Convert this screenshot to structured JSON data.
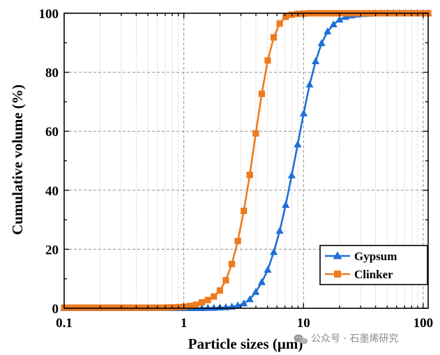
{
  "chart_data": {
    "type": "line",
    "title": "",
    "xlabel": "Particle sizes (μm)",
    "ylabel": "Cumulative volume (%)",
    "xscale": "log",
    "xlim": [
      0.1,
      110
    ],
    "ylim": [
      0,
      100
    ],
    "x_ticks": [
      0.1,
      1,
      10,
      100
    ],
    "x_tick_labels": [
      "0.1",
      "1",
      "10",
      "100"
    ],
    "y_ticks": [
      0,
      20,
      40,
      60,
      80,
      100
    ],
    "y_tick_labels": [
      "0",
      "20",
      "40",
      "60",
      "80",
      "100"
    ],
    "grid": true,
    "legend_position": "bottom-right",
    "series": [
      {
        "name": "Gypsum",
        "color": "#1f6fd6",
        "marker": "triangle",
        "x": [
          0.1,
          0.112,
          0.126,
          0.142,
          0.159,
          0.178,
          0.2,
          0.224,
          0.252,
          0.283,
          0.317,
          0.356,
          0.399,
          0.448,
          0.502,
          0.564,
          0.632,
          0.71,
          0.796,
          0.893,
          1.002,
          1.125,
          1.262,
          1.416,
          1.589,
          1.783,
          2.0,
          2.244,
          2.518,
          2.825,
          3.17,
          3.557,
          3.991,
          4.477,
          5.024,
          5.637,
          6.325,
          7.096,
          7.962,
          8.934,
          10.024,
          11.247,
          12.619,
          14.159,
          15.887,
          17.825,
          20.0,
          22.44,
          25.179,
          28.251,
          31.698,
          35.566,
          39.905,
          44.774,
          50.238,
          56.368,
          63.246,
          70.963,
          79.621,
          89.337,
          100.237,
          110.0
        ],
        "y": [
          0,
          0,
          0,
          0,
          0,
          0,
          0,
          0,
          0,
          0,
          0,
          0,
          0,
          0,
          0,
          0,
          0,
          0,
          0,
          0,
          0,
          0,
          0,
          0,
          0.05,
          0.1,
          0.2,
          0.3,
          0.5,
          0.9,
          1.6,
          3.0,
          5.5,
          8.8,
          13.0,
          19.0,
          26.2,
          35.0,
          45.0,
          55.5,
          66.0,
          75.8,
          83.7,
          89.8,
          93.8,
          96.2,
          97.8,
          98.7,
          99.2,
          99.5,
          99.7,
          99.8,
          99.9,
          99.95,
          100,
          100,
          100,
          100,
          100,
          100,
          100,
          100
        ]
      },
      {
        "name": "Clinker",
        "color": "#ee7a1e",
        "marker": "square",
        "x": [
          0.1,
          0.112,
          0.126,
          0.142,
          0.159,
          0.178,
          0.2,
          0.224,
          0.252,
          0.283,
          0.317,
          0.356,
          0.399,
          0.448,
          0.502,
          0.564,
          0.632,
          0.71,
          0.796,
          0.893,
          1.002,
          1.125,
          1.262,
          1.416,
          1.589,
          1.783,
          2.0,
          2.244,
          2.518,
          2.825,
          3.17,
          3.557,
          3.991,
          4.477,
          5.024,
          5.637,
          6.325,
          7.096,
          7.962,
          8.934,
          10.024,
          11.247,
          12.619,
          14.159,
          15.887,
          17.825,
          20.0,
          22.44,
          25.179,
          28.251,
          31.698,
          35.566,
          39.905,
          44.774,
          50.238,
          56.368,
          63.246,
          70.963,
          79.621,
          89.337,
          100.237,
          110.0
        ],
        "y": [
          0.2,
          0.2,
          0.2,
          0.2,
          0.2,
          0.2,
          0.2,
          0.2,
          0.2,
          0.2,
          0.2,
          0.2,
          0.2,
          0.2,
          0.2,
          0.2,
          0.2,
          0.25,
          0.3,
          0.4,
          0.5,
          0.8,
          1.2,
          2.0,
          2.8,
          4.0,
          6.0,
          9.5,
          15.0,
          22.8,
          33.0,
          45.2,
          59.3,
          72.7,
          84.0,
          91.8,
          96.5,
          98.8,
          99.5,
          99.8,
          99.9,
          100,
          100,
          100,
          100,
          100,
          100,
          100,
          100,
          100,
          100,
          100,
          100,
          100,
          100,
          100,
          100,
          100,
          100,
          100,
          100,
          100
        ]
      }
    ]
  },
  "watermark": {
    "text": "公众号 · 石墨烯研究",
    "icon": "wechat-icon"
  }
}
